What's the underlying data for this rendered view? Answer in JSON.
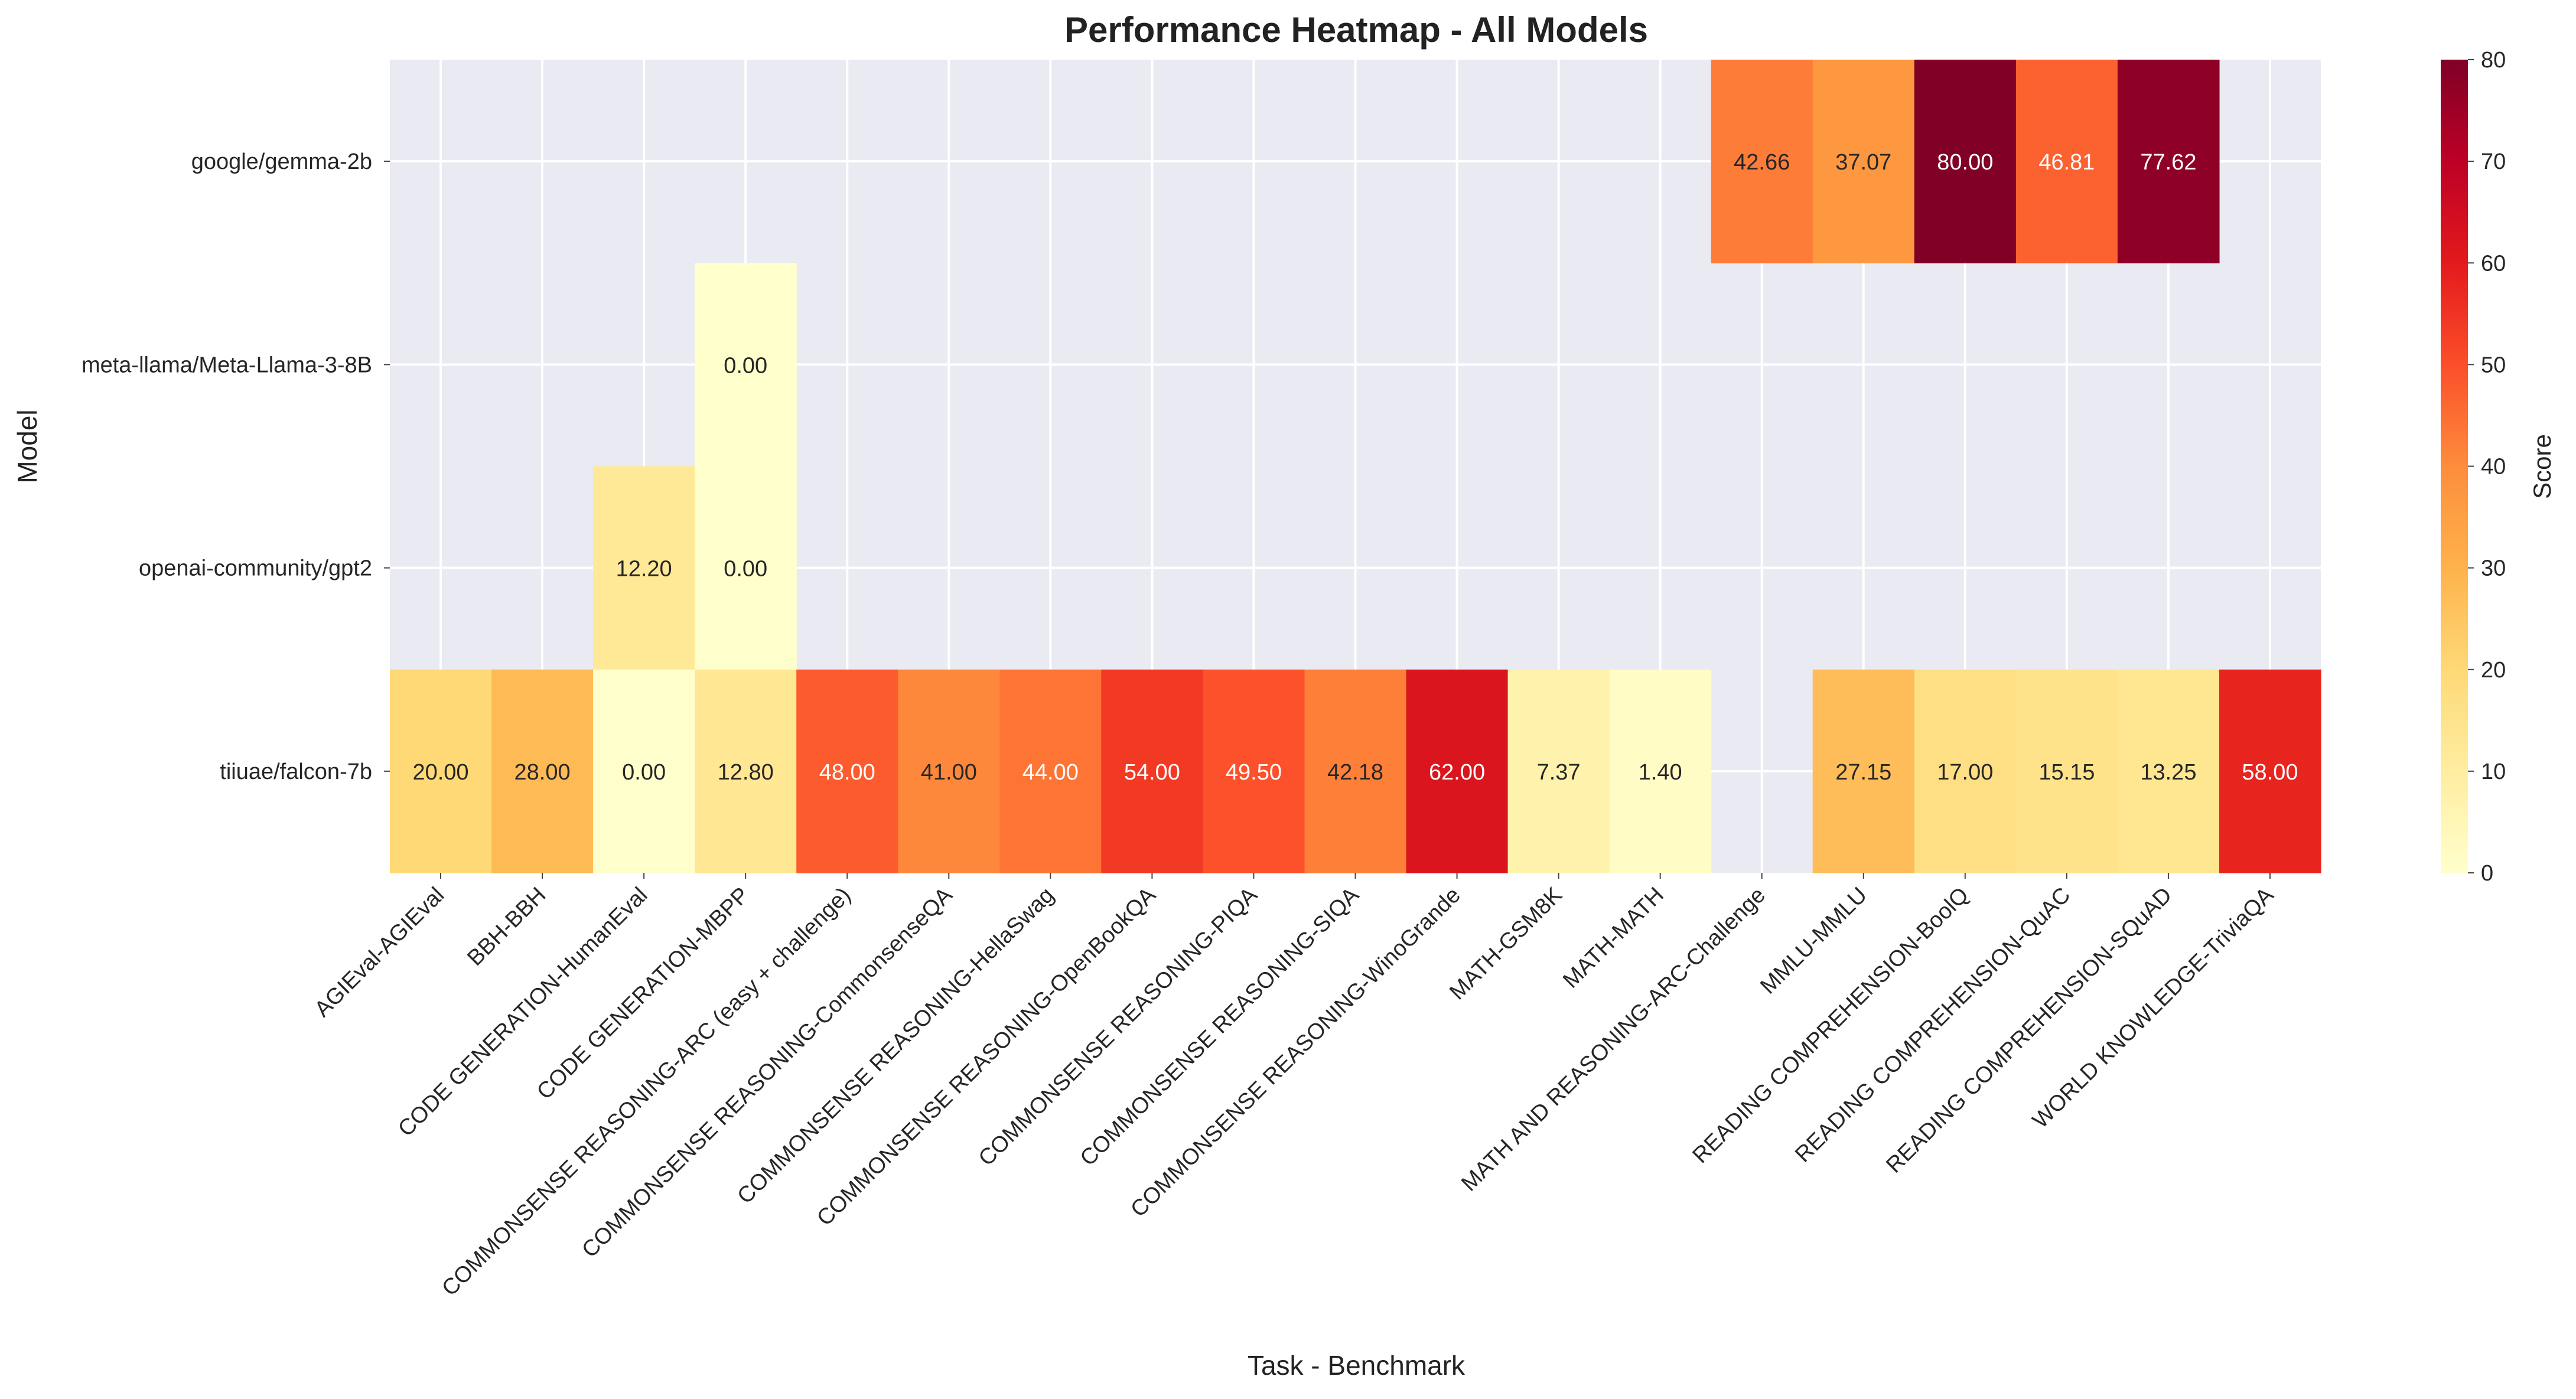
{
  "chart_data": {
    "type": "heatmap",
    "title": "Performance Heatmap - All Models",
    "xlabel": "Task - Benchmark",
    "ylabel": "Model",
    "colorbar_label": "Score",
    "value_range": [
      0,
      80
    ],
    "colorbar_ticks": [
      "0",
      "10",
      "20",
      "30",
      "40",
      "50",
      "60",
      "70",
      "80"
    ],
    "colormap": "YlOrRd",
    "background_color": "#EAEAF2",
    "grid": true,
    "models": [
      "google/gemma-2b",
      "meta-llama/Meta-Llama-3-8B",
      "openai-community/gpt2",
      "tiiuae/falcon-7b"
    ],
    "tasks": [
      "AGIEval-AGIEval",
      "BBH-BBH",
      "CODE GENERATION-HumanEval",
      "CODE GENERATION-MBPP",
      "COMMONSENSE REASONING-ARC (easy + challenge)",
      "COMMONSENSE REASONING-CommonsenseQA",
      "COMMONSENSE REASONING-HellaSwag",
      "COMMONSENSE REASONING-OpenBookQA",
      "COMMONSENSE REASONING-PIQA",
      "COMMONSENSE REASONING-SIQA",
      "COMMONSENSE REASONING-WinoGrande",
      "MATH-GSM8K",
      "MATH-MATH",
      "MATH AND REASONING-ARC-Challenge",
      "MMLU-MMLU",
      "READING COMPREHENSION-BoolQ",
      "READING COMPREHENSION-QuAC",
      "READING COMPREHENSION-SQuAD",
      "WORLD KNOWLEDGE-TriviaQA"
    ],
    "values": [
      [
        null,
        null,
        null,
        null,
        null,
        null,
        null,
        null,
        null,
        null,
        null,
        null,
        null,
        42.66,
        37.07,
        80.0,
        46.81,
        77.62,
        null
      ],
      [
        null,
        null,
        null,
        0.0,
        null,
        null,
        null,
        null,
        null,
        null,
        null,
        null,
        null,
        null,
        null,
        null,
        null,
        null,
        null
      ],
      [
        null,
        null,
        12.2,
        0.0,
        null,
        null,
        null,
        null,
        null,
        null,
        null,
        null,
        null,
        null,
        null,
        null,
        null,
        null,
        null
      ],
      [
        20.0,
        28.0,
        0.0,
        12.8,
        48.0,
        41.0,
        44.0,
        54.0,
        49.5,
        42.18,
        62.0,
        7.37,
        1.4,
        null,
        27.15,
        17.0,
        15.15,
        13.25,
        58.0
      ]
    ],
    "value_labels": [
      [
        null,
        null,
        null,
        null,
        null,
        null,
        null,
        null,
        null,
        null,
        null,
        null,
        null,
        "42.66",
        "37.07",
        "80.00",
        "46.81",
        "77.62",
        null
      ],
      [
        null,
        null,
        null,
        "0.00",
        null,
        null,
        null,
        null,
        null,
        null,
        null,
        null,
        null,
        null,
        null,
        null,
        null,
        null,
        null
      ],
      [
        null,
        null,
        "12.20",
        "0.00",
        null,
        null,
        null,
        null,
        null,
        null,
        null,
        null,
        null,
        null,
        null,
        null,
        null,
        null,
        null
      ],
      [
        "20.00",
        "28.00",
        "0.00",
        "12.80",
        "48.00",
        "41.00",
        "44.00",
        "54.00",
        "49.50",
        "42.18",
        "62.00",
        "7.37",
        "1.40",
        null,
        "27.15",
        "17.00",
        "15.15",
        "13.25",
        "58.00"
      ]
    ]
  }
}
